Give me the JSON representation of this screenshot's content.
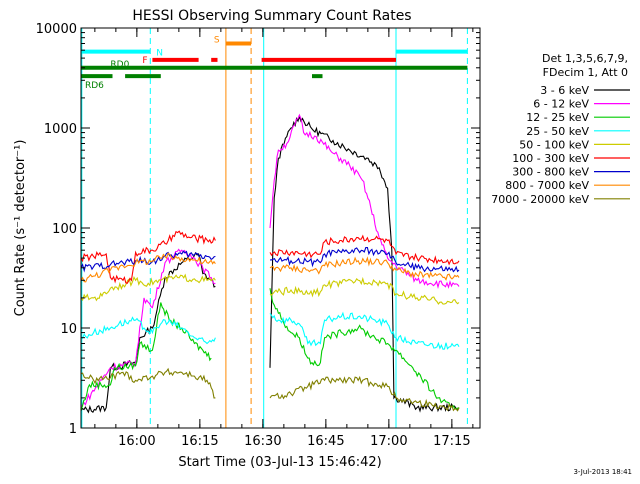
{
  "chart_data": {
    "type": "line",
    "title": "HESSI Observing Summary Count Rates",
    "xlabel": "Start Time (03-Jul-13 15:46:42)",
    "ylabel": "Count Rate (s⁻¹ detector⁻¹)",
    "yscale": "log",
    "xlim_minutes": [
      0,
      95
    ],
    "ylim": [
      1,
      10000
    ],
    "x_ticks": [
      {
        "label": "16:00",
        "minute": 13.3
      },
      {
        "label": "16:15",
        "minute": 28.3
      },
      {
        "label": "16:30",
        "minute": 43.3
      },
      {
        "label": "16:45",
        "minute": 58.3
      },
      {
        "label": "17:00",
        "minute": 73.3
      },
      {
        "label": "17:15",
        "minute": 88.3
      }
    ],
    "y_ticks": [
      {
        "label": "1",
        "value": 1
      },
      {
        "label": "10",
        "value": 10
      },
      {
        "label": "100",
        "value": 100
      },
      {
        "label": "1000",
        "value": 1000
      },
      {
        "label": "10000",
        "value": 10000
      }
    ],
    "legend_header": [
      "Det 1,3,5,6,7,9,",
      "FDecim 1, Att 0"
    ],
    "legend_placement": "right",
    "timestamp": "3-Jul-2013 18:41",
    "series": [
      {
        "name": "3 - 6 keV",
        "color": "#000000",
        "points": [
          [
            0,
            1.5
          ],
          [
            6,
            1.6
          ],
          [
            7,
            4.0
          ],
          [
            13,
            4.5
          ],
          [
            14,
            8
          ],
          [
            17,
            10
          ],
          [
            20,
            32
          ],
          [
            24,
            45
          ],
          [
            28,
            55
          ],
          [
            29,
            35
          ],
          [
            31,
            30
          ],
          [
            32,
            26
          ],
          [
            43,
            null
          ],
          [
            44,
            null
          ],
          [
            45,
            4
          ],
          [
            46,
            200
          ],
          [
            47,
            500
          ],
          [
            49,
            820
          ],
          [
            50,
            1000
          ],
          [
            52,
            1300
          ],
          [
            55,
            980
          ],
          [
            60,
            750
          ],
          [
            64,
            600
          ],
          [
            68,
            500
          ],
          [
            71,
            400
          ],
          [
            73,
            250
          ],
          [
            74,
            60
          ],
          [
            74.5,
            2
          ],
          [
            75,
            2
          ],
          [
            80,
            1.6
          ],
          [
            90,
            1.6
          ]
        ]
      },
      {
        "name": "6 - 12 keV",
        "color": "#ff00ff",
        "points": [
          [
            0,
            1.6
          ],
          [
            7,
            4.0
          ],
          [
            13,
            4.5
          ],
          [
            15,
            20
          ],
          [
            17,
            16
          ],
          [
            20,
            45
          ],
          [
            24,
            60
          ],
          [
            26,
            55
          ],
          [
            29,
            40
          ],
          [
            31,
            32
          ],
          [
            32,
            28
          ],
          [
            43,
            null
          ],
          [
            45,
            100
          ],
          [
            46,
            300
          ],
          [
            47,
            600
          ],
          [
            49,
            700
          ],
          [
            52,
            1350
          ],
          [
            53,
            900
          ],
          [
            56,
            820
          ],
          [
            60,
            560
          ],
          [
            64,
            420
          ],
          [
            67,
            300
          ],
          [
            69,
            160
          ],
          [
            71,
            80
          ],
          [
            73,
            50
          ],
          [
            75,
            42
          ],
          [
            80,
            30
          ],
          [
            90,
            26
          ]
        ]
      },
      {
        "name": "12 - 25 keV",
        "color": "#00cc00",
        "points": [
          [
            0,
            1.5
          ],
          [
            2,
            2.7
          ],
          [
            7,
            2.7
          ],
          [
            8,
            4
          ],
          [
            13,
            4.2
          ],
          [
            14,
            7
          ],
          [
            17,
            6
          ],
          [
            19,
            18
          ],
          [
            21,
            12
          ],
          [
            24,
            10
          ],
          [
            27,
            7
          ],
          [
            29,
            6
          ],
          [
            31,
            5
          ],
          [
            43,
            null
          ],
          [
            45,
            25
          ],
          [
            46,
            17
          ],
          [
            48,
            12
          ],
          [
            50,
            9
          ],
          [
            52,
            8
          ],
          [
            54,
            5
          ],
          [
            55,
            4.5
          ],
          [
            57,
            4.5
          ],
          [
            58,
            8
          ],
          [
            62,
            9
          ],
          [
            66,
            10
          ],
          [
            70,
            8
          ],
          [
            73,
            7
          ],
          [
            75,
            6
          ],
          [
            79,
            4
          ],
          [
            85,
            2.0
          ],
          [
            88,
            1.6
          ],
          [
            90,
            1.6
          ]
        ]
      },
      {
        "name": "25 - 50 keV",
        "color": "#00ffff",
        "points": [
          [
            0,
            8
          ],
          [
            3,
            9
          ],
          [
            7,
            10
          ],
          [
            9,
            11
          ],
          [
            13,
            12
          ],
          [
            15,
            10
          ],
          [
            17,
            9
          ],
          [
            20,
            12
          ],
          [
            24,
            10
          ],
          [
            27,
            8
          ],
          [
            30,
            7
          ],
          [
            32,
            8
          ],
          [
            43,
            null
          ],
          [
            45,
            14
          ],
          [
            47,
            12
          ],
          [
            50,
            12
          ],
          [
            52,
            11
          ],
          [
            54,
            7
          ],
          [
            57,
            7
          ],
          [
            58,
            12
          ],
          [
            62,
            13
          ],
          [
            66,
            13
          ],
          [
            70,
            12
          ],
          [
            73,
            11
          ],
          [
            75,
            8
          ],
          [
            80,
            7
          ],
          [
            88,
            6.5
          ],
          [
            90,
            6.5
          ]
        ]
      },
      {
        "name": "50 - 100 keV",
        "color": "#cccc00",
        "points": [
          [
            0,
            20
          ],
          [
            3,
            20
          ],
          [
            5,
            21
          ],
          [
            7,
            25
          ],
          [
            10,
            27
          ],
          [
            13,
            30
          ],
          [
            16,
            28
          ],
          [
            19,
            30
          ],
          [
            23,
            32
          ],
          [
            27,
            31
          ],
          [
            30,
            30
          ],
          [
            32,
            30
          ],
          [
            43,
            null
          ],
          [
            45,
            22
          ],
          [
            50,
            24
          ],
          [
            54,
            22
          ],
          [
            57,
            23
          ],
          [
            58,
            27
          ],
          [
            62,
            28
          ],
          [
            66,
            30
          ],
          [
            70,
            29
          ],
          [
            73,
            28
          ],
          [
            75,
            22
          ],
          [
            80,
            20
          ],
          [
            88,
            18
          ],
          [
            90,
            18
          ]
        ]
      },
      {
        "name": "100 - 300 keV",
        "color": "#ff0000",
        "points": [
          [
            0,
            50
          ],
          [
            3,
            52
          ],
          [
            6,
            55
          ],
          [
            7,
            32
          ],
          [
            10,
            30
          ],
          [
            12,
            30
          ],
          [
            13,
            57
          ],
          [
            17,
            60
          ],
          [
            20,
            70
          ],
          [
            23,
            90
          ],
          [
            26,
            80
          ],
          [
            30,
            76
          ],
          [
            32,
            75
          ],
          [
            43,
            null
          ],
          [
            45,
            57
          ],
          [
            50,
            57
          ],
          [
            54,
            55
          ],
          [
            57,
            55
          ],
          [
            58,
            73
          ],
          [
            62,
            75
          ],
          [
            66,
            80
          ],
          [
            70,
            78
          ],
          [
            73,
            75
          ],
          [
            75,
            55
          ],
          [
            80,
            50
          ],
          [
            88,
            47
          ],
          [
            90,
            47
          ]
        ]
      },
      {
        "name": "300 - 800 keV",
        "color": "#0000cc",
        "points": [
          [
            0,
            40
          ],
          [
            3,
            41
          ],
          [
            7,
            43
          ],
          [
            10,
            45
          ],
          [
            13,
            47
          ],
          [
            17,
            46
          ],
          [
            20,
            52
          ],
          [
            24,
            55
          ],
          [
            27,
            54
          ],
          [
            30,
            52
          ],
          [
            32,
            52
          ],
          [
            43,
            null
          ],
          [
            45,
            48
          ],
          [
            50,
            47
          ],
          [
            54,
            46
          ],
          [
            57,
            45
          ],
          [
            58,
            55
          ],
          [
            62,
            57
          ],
          [
            66,
            60
          ],
          [
            70,
            58
          ],
          [
            73,
            55
          ],
          [
            75,
            45
          ],
          [
            80,
            40
          ],
          [
            88,
            38
          ],
          [
            90,
            38
          ]
        ]
      },
      {
        "name": "800 - 7000 keV",
        "color": "#ff8800",
        "points": [
          [
            0,
            30
          ],
          [
            3,
            33
          ],
          [
            7,
            38
          ],
          [
            10,
            42
          ],
          [
            13,
            45
          ],
          [
            17,
            47
          ],
          [
            20,
            52
          ],
          [
            24,
            50
          ],
          [
            27,
            48
          ],
          [
            30,
            45
          ],
          [
            32,
            44
          ],
          [
            43,
            null
          ],
          [
            45,
            40
          ],
          [
            50,
            40
          ],
          [
            54,
            38
          ],
          [
            57,
            38
          ],
          [
            58,
            42
          ],
          [
            62,
            45
          ],
          [
            66,
            47
          ],
          [
            70,
            46
          ],
          [
            73,
            45
          ],
          [
            75,
            38
          ],
          [
            80,
            34
          ],
          [
            88,
            32
          ],
          [
            90,
            32
          ]
        ]
      },
      {
        "name": "7000 - 20000 keV",
        "color": "#808000",
        "points": [
          [
            0,
            3.5
          ],
          [
            3,
            3.0
          ],
          [
            7,
            3.2
          ],
          [
            10,
            3.6
          ],
          [
            13,
            3.0
          ],
          [
            17,
            3.3
          ],
          [
            20,
            3.6
          ],
          [
            24,
            3.6
          ],
          [
            27,
            3.3
          ],
          [
            30,
            3.0
          ],
          [
            32,
            2.0
          ],
          [
            43,
            null
          ],
          [
            45,
            2.0
          ],
          [
            50,
            2.2
          ],
          [
            54,
            2.6
          ],
          [
            58,
            3.0
          ],
          [
            62,
            3.0
          ],
          [
            66,
            3.0
          ],
          [
            70,
            2.8
          ],
          [
            73,
            2.6
          ],
          [
            75,
            2.0
          ],
          [
            80,
            1.8
          ],
          [
            88,
            1.6
          ],
          [
            90,
            1.6
          ]
        ]
      }
    ],
    "flag_bars": [
      {
        "label": "N",
        "color": "#00ffff",
        "y": 5800,
        "segments": [
          [
            0,
            16.5
          ],
          [
            75,
            92
          ]
        ]
      },
      {
        "label": "S",
        "color": "#ff8800",
        "y": 7000,
        "segments": [
          [
            34.5,
            40.5
          ]
        ]
      },
      {
        "label": "F",
        "color": "#ff0000",
        "y": 4800,
        "segments": [
          [
            17,
            28
          ],
          [
            31,
            32.5
          ],
          [
            43,
            75
          ]
        ]
      },
      {
        "label": "RD0",
        "color": "#008000",
        "y": 4000,
        "segments": [
          [
            0,
            92
          ]
        ]
      },
      {
        "label": "RD6",
        "color": "#008000",
        "y": 3300,
        "segments": [
          [
            0,
            7.5
          ],
          [
            10.5,
            19
          ],
          [
            55,
            57.5
          ]
        ]
      }
    ],
    "vertical_markers": [
      {
        "color": "#00ffff",
        "style": "dashed",
        "minute": 16.5
      },
      {
        "color": "#00ffff",
        "style": "solid",
        "minute": 0.2
      },
      {
        "color": "#ff8800",
        "style": "solid",
        "minute": 34.5
      },
      {
        "color": "#ff8800",
        "style": "dashed",
        "minute": 40.5
      },
      {
        "color": "#00ffff",
        "style": "solid",
        "minute": 43.5
      },
      {
        "color": "#00ffff",
        "style": "solid",
        "minute": 75
      },
      {
        "color": "#00ffff",
        "style": "dashed",
        "minute": 92
      }
    ]
  }
}
